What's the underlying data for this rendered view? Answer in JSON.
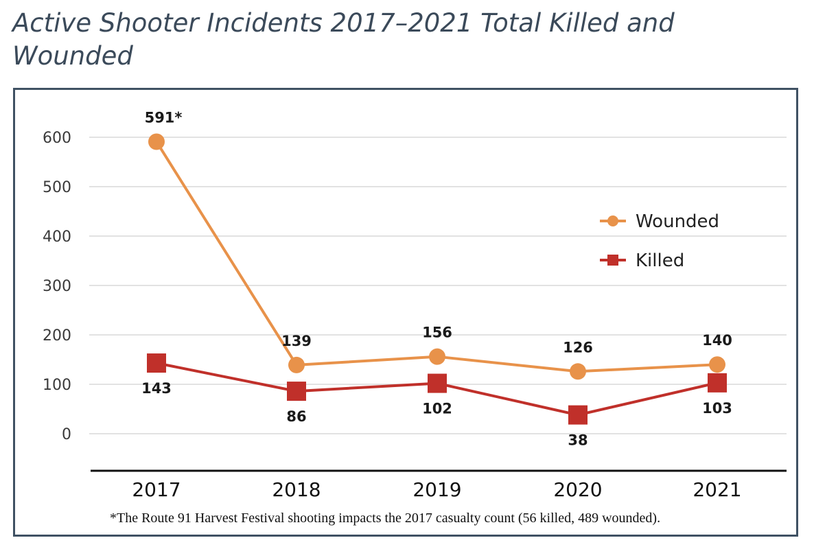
{
  "title": "Active Shooter Incidents 2017–2021 Total Killed and Wounded",
  "footnote": "*The Route 91 Harvest Festival shooting impacts the 2017 casualty count (56 killed, 489 wounded).",
  "colors": {
    "wounded": "#e8924a",
    "killed": "#c0302a",
    "frame": "#3f5163",
    "grid": "#d9d9d9",
    "baseline": "#111111"
  },
  "chart_data": {
    "type": "line",
    "categories": [
      "2017",
      "2018",
      "2019",
      "2020",
      "2021"
    ],
    "ylim": [
      0,
      600
    ],
    "yticks": [
      0,
      100,
      200,
      300,
      400,
      500,
      600
    ],
    "grid": true,
    "legend_position": "right",
    "series": [
      {
        "name": "Wounded",
        "values": [
          591,
          139,
          156,
          126,
          140
        ],
        "labels": [
          "591*",
          "139",
          "156",
          "126",
          "140"
        ],
        "marker": "circle",
        "color": "#e8924a"
      },
      {
        "name": "Killed",
        "values": [
          143,
          86,
          102,
          38,
          103
        ],
        "labels": [
          "143",
          "86",
          "102",
          "38",
          "103"
        ],
        "marker": "square",
        "color": "#c0302a"
      }
    ]
  }
}
